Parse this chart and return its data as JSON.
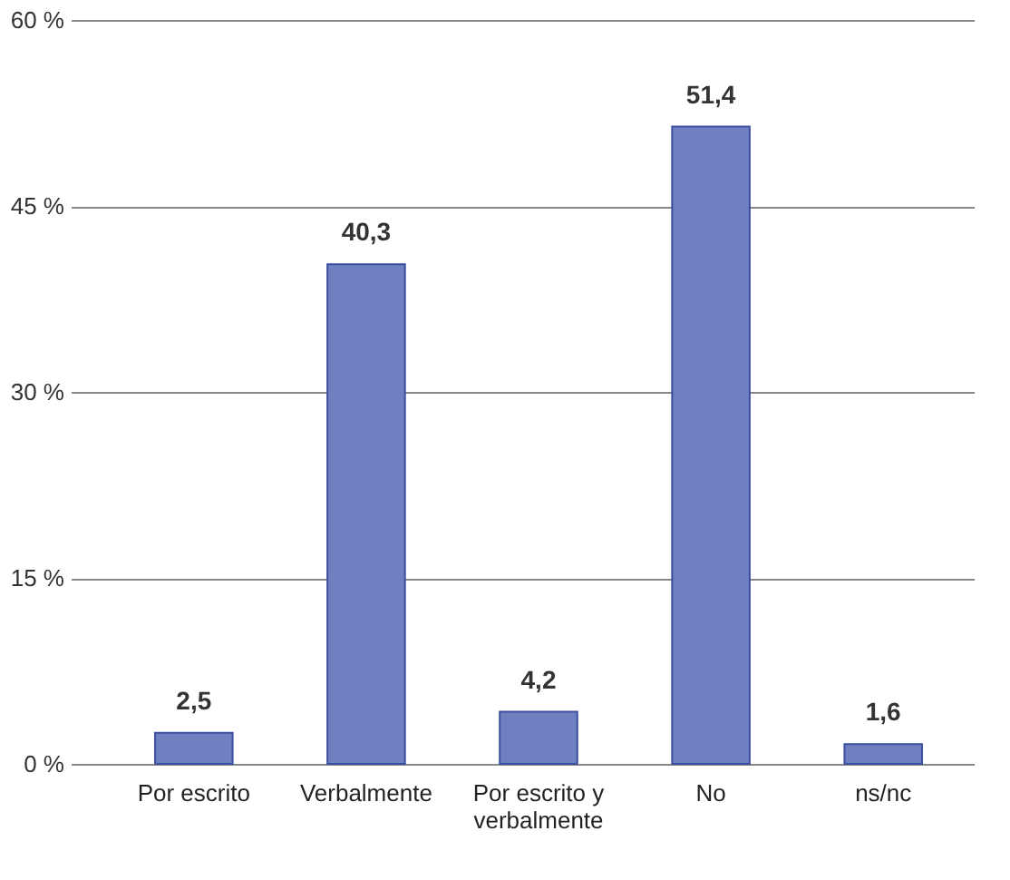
{
  "chart_data": {
    "type": "bar",
    "categories": [
      "Por escrito",
      "Verbalmente",
      "Por escrito y verbalmente",
      "No",
      "ns/nc"
    ],
    "values": [
      2.5,
      40.3,
      4.2,
      51.4,
      1.6
    ],
    "color": "#6f7fc0",
    "ylim": [
      0,
      60
    ],
    "yticks": [
      {
        "value": 0,
        "label": "0 %"
      },
      {
        "value": 15,
        "label": "15 %"
      },
      {
        "value": 30,
        "label": "30 %"
      },
      {
        "value": 45,
        "label": "45 %"
      },
      {
        "value": 60,
        "label": "60 %"
      }
    ],
    "grid": "y",
    "value_labels": [
      "2,5",
      "40,3",
      "4,2",
      "51,4",
      "1,6"
    ]
  }
}
